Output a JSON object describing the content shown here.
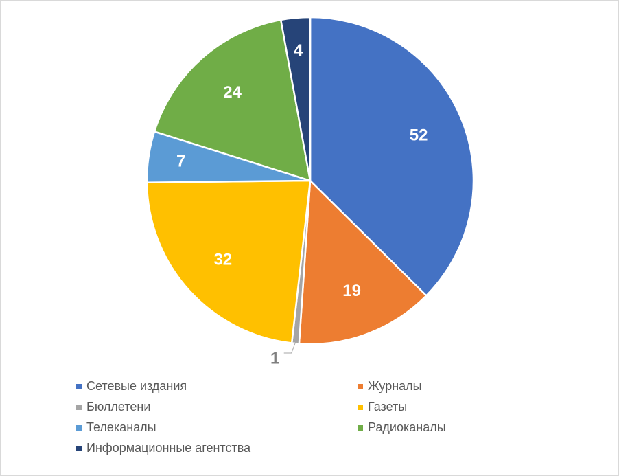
{
  "chart_data": {
    "type": "pie",
    "categories": [
      "Сетевые издания",
      "Журналы",
      "Бюллетени",
      "Газеты",
      "Телеканалы",
      "Радиоканалы",
      "Информационные агентства"
    ],
    "values": [
      52,
      19,
      1,
      32,
      7,
      24,
      4
    ],
    "colors": [
      "#4472c4",
      "#ed7d31",
      "#a5a5a5",
      "#ffc000",
      "#5b9bd5",
      "#70ad47",
      "#264478"
    ],
    "label_colors": [
      "#ffffff",
      "#ffffff",
      "#7f7f7f",
      "#ffffff",
      "#ffffff",
      "#ffffff",
      "#ffffff"
    ],
    "start_angle_deg": 0,
    "direction": "clockwise",
    "data_labels": true,
    "legend_position": "bottom"
  }
}
